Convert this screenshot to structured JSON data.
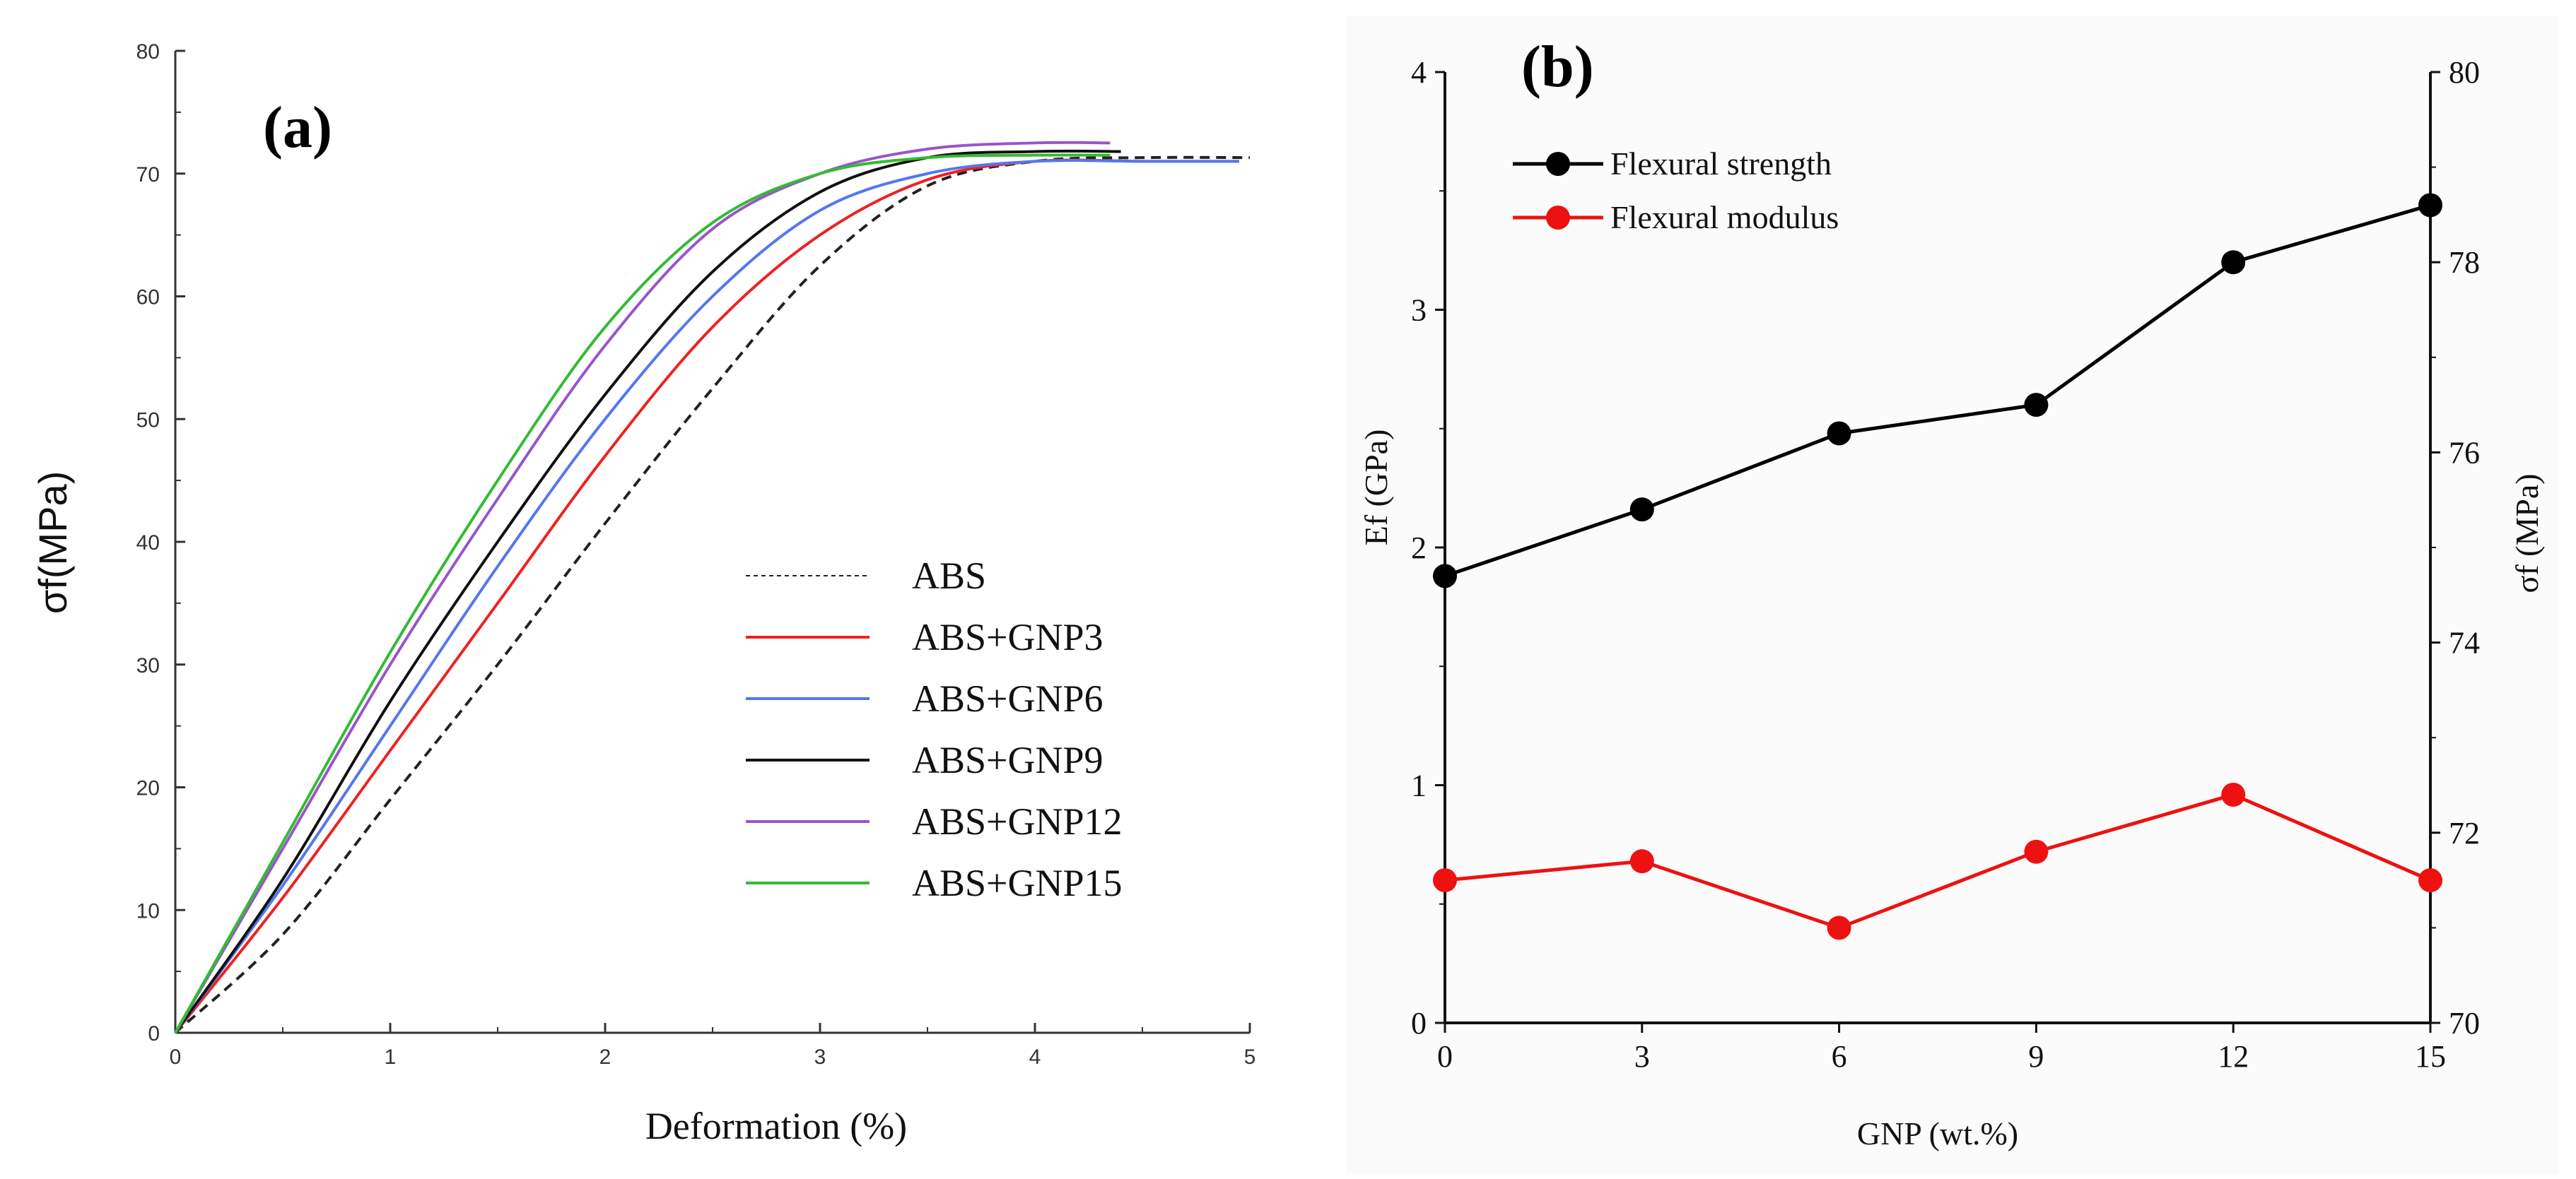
{
  "chart_data": [
    {
      "type": "line",
      "panel_label": "(a)",
      "xlabel": "Deformation (%)",
      "ylabel": "σf(MPa)",
      "xlim": [
        0,
        5
      ],
      "ylim": [
        0,
        80
      ],
      "xticks": [
        "0",
        "1",
        "2",
        "3",
        "4",
        "5"
      ],
      "yticks": [
        "0",
        "10",
        "20",
        "30",
        "40",
        "50",
        "60",
        "70",
        "80"
      ],
      "legend_position": "center-right",
      "series": [
        {
          "name": "ABS",
          "color": "#222222",
          "dashed": true,
          "x": [
            0,
            0.5,
            1,
            1.5,
            2,
            2.5,
            3,
            3.5,
            4,
            4.5,
            5
          ],
          "y": [
            0,
            8,
            19,
            30,
            41.5,
            52.5,
            62.5,
            69,
            71,
            71.3,
            71.3
          ]
        },
        {
          "name": "ABS+GNP3",
          "color": "#ee2222",
          "dashed": false,
          "x": [
            0,
            0.5,
            1,
            1.5,
            2,
            2.5,
            3,
            3.5,
            4,
            4.5,
            4.95
          ],
          "y": [
            0,
            11,
            23,
            35,
            47,
            57.5,
            65,
            69.5,
            71,
            71,
            71
          ]
        },
        {
          "name": "ABS+GNP6",
          "color": "#5577ee",
          "dashed": false,
          "x": [
            0,
            0.5,
            1,
            1.5,
            2,
            2.5,
            3,
            3.5,
            4,
            4.5,
            4.95
          ],
          "y": [
            0,
            12,
            25,
            38,
            50,
            60,
            67,
            70,
            71,
            71,
            71
          ]
        },
        {
          "name": "ABS+GNP9",
          "color": "#111111",
          "dashed": false,
          "x": [
            0,
            0.5,
            1,
            1.5,
            2,
            2.5,
            3,
            3.5,
            4,
            4.4
          ],
          "y": [
            0,
            12.5,
            27,
            40,
            52,
            62,
            68.5,
            71.3,
            71.8,
            71.8
          ]
        },
        {
          "name": "ABS+GNP12",
          "color": "#9955cc",
          "dashed": false,
          "x": [
            0,
            0.5,
            1,
            1.5,
            2,
            2.5,
            3,
            3.5,
            4,
            4.35
          ],
          "y": [
            0,
            15,
            30,
            43.5,
            56,
            65.5,
            70,
            72,
            72.5,
            72.5
          ]
        },
        {
          "name": "ABS+GNP15",
          "color": "#33bb33",
          "dashed": false,
          "x": [
            0,
            0.5,
            1,
            1.5,
            2,
            2.5,
            3,
            3.5,
            4,
            4.35
          ],
          "y": [
            0,
            15.5,
            31,
            45,
            57.5,
            66,
            70,
            71.3,
            71.5,
            71.5
          ]
        }
      ]
    },
    {
      "type": "line",
      "panel_label": "(b)",
      "xlabel": "GNP (wt.%)",
      "ylabel_left": "Ef (GPa)",
      "ylabel_right": "σf (MPa)",
      "x": [
        0,
        3,
        6,
        9,
        12,
        15
      ],
      "xlim": [
        0,
        15
      ],
      "ylim_left": [
        0,
        4
      ],
      "ylim_right": [
        70,
        80
      ],
      "xticks": [
        "0",
        "3",
        "6",
        "9",
        "12",
        "15"
      ],
      "yticks_left": [
        "0",
        "1",
        "2",
        "3",
        "4"
      ],
      "yticks_right": [
        "70",
        "72",
        "74",
        "76",
        "78",
        "80"
      ],
      "legend_position": "top-left",
      "series": [
        {
          "name": "Flexural strength",
          "color": "#000000",
          "axis": "right",
          "y": [
            74.7,
            75.4,
            76.2,
            76.5,
            78.0,
            78.6
          ]
        },
        {
          "name": "Flexural modulus",
          "color": "#ee1111",
          "axis": "left",
          "y": [
            0.6,
            0.68,
            0.4,
            0.72,
            0.96,
            0.6
          ]
        }
      ]
    }
  ]
}
